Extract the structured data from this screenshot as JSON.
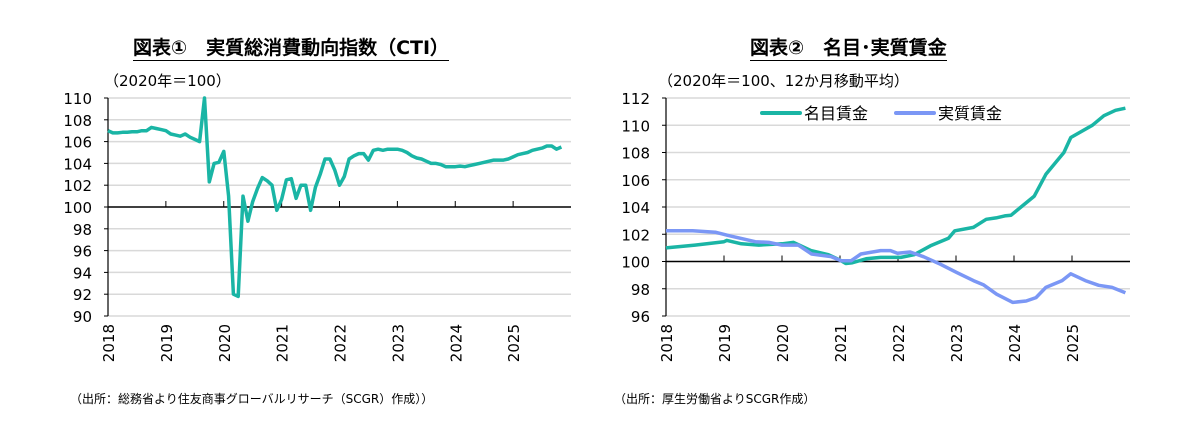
{
  "chart_data": [
    {
      "type": "line",
      "title": "図表①　実質総消費動向指数（CTI）",
      "subtitle": "（2020年＝100）",
      "note": "（出所：総務省より住友商事グローバルリサーチ（SCGR）作成））",
      "xlabel": "",
      "ylabel": "",
      "ylim": [
        90,
        110
      ],
      "yticks": [
        "90",
        "92",
        "94",
        "96",
        "98",
        "100",
        "102",
        "104",
        "106",
        "108",
        "110"
      ],
      "xlim": [
        2018,
        2026
      ],
      "xticks": [
        "2018",
        "2019",
        "2020",
        "2021",
        "2022",
        "2023",
        "2024",
        "2025"
      ],
      "grid": true,
      "series": [
        {
          "name": "実質総消費動向指数",
          "color": "#1ab5a5",
          "start": 2018,
          "freq": "monthly",
          "values": [
            107.0,
            106.8,
            106.8,
            106.85,
            106.85,
            106.9,
            106.9,
            107.0,
            107.0,
            107.3,
            107.2,
            107.1,
            107.0,
            106.7,
            106.6,
            106.5,
            106.7,
            106.4,
            106.2,
            106.0,
            110.0,
            102.3,
            104.0,
            104.1,
            105.1,
            101.0,
            92.0,
            91.8,
            101.0,
            98.7,
            100.5,
            101.7,
            102.7,
            102.4,
            102.0,
            99.7,
            100.7,
            102.5,
            102.6,
            100.8,
            102.0,
            102.0,
            99.7,
            101.8,
            103.0,
            104.4,
            104.4,
            103.4,
            102.0,
            102.8,
            104.4,
            104.7,
            104.9,
            104.9,
            104.3,
            105.2,
            105.3,
            105.2,
            105.3,
            105.3,
            105.3,
            105.2,
            105.0,
            104.7,
            104.5,
            104.4,
            104.2,
            104.0,
            104.0,
            103.9,
            103.7,
            103.7,
            103.7,
            103.75,
            103.7,
            103.8,
            103.9,
            104.0,
            104.1,
            104.2,
            104.3,
            104.3,
            104.3,
            104.4,
            104.6,
            104.8,
            104.9,
            105.0,
            105.2,
            105.3,
            105.4,
            105.6,
            105.6,
            105.3,
            105.5
          ]
        }
      ]
    },
    {
      "type": "line",
      "title": "図表②　名目･実質賃金",
      "subtitle": "（2020年＝100、12か月移動平均）",
      "note": "（出所：厚生労働省よりSCGR作成）",
      "xlabel": "",
      "ylabel": "",
      "ylim": [
        96,
        112
      ],
      "yticks": [
        "96",
        "98",
        "100",
        "102",
        "104",
        "106",
        "108",
        "110",
        "112"
      ],
      "xlim": [
        2018,
        2026
      ],
      "xticks": [
        "2018",
        "2019",
        "2020",
        "2021",
        "2022",
        "2023",
        "2024",
        "2025"
      ],
      "grid": true,
      "legend": "top-center",
      "series": [
        {
          "name": "名目賃金",
          "color": "#1ab5a5",
          "x": [
            2018.0,
            2018.5,
            2019.0,
            2019.05,
            2019.3,
            2019.6,
            2020.0,
            2020.2,
            2020.5,
            2020.8,
            2021.0,
            2021.1,
            2021.2,
            2021.45,
            2021.7,
            2022.05,
            2022.28,
            2022.56,
            2022.87,
            2022.98,
            2023.3,
            2023.52,
            2023.69,
            2023.84,
            2023.95,
            2024.15,
            2024.35,
            2024.55,
            2024.86,
            2024.98,
            2025.35,
            2025.55,
            2025.75,
            2025.92
          ],
          "values": [
            101.0,
            101.2,
            101.45,
            101.55,
            101.3,
            101.2,
            101.3,
            101.4,
            100.8,
            100.5,
            100.1,
            99.85,
            99.9,
            100.2,
            100.3,
            100.3,
            100.5,
            101.15,
            101.7,
            102.25,
            102.5,
            103.1,
            103.2,
            103.35,
            103.4,
            104.1,
            104.8,
            106.4,
            108.0,
            109.1,
            110.0,
            110.7,
            111.1,
            111.25
          ]
        },
        {
          "name": "実質賃金",
          "color": "#7b97f5",
          "x": [
            2018.0,
            2018.46,
            2018.85,
            2019.08,
            2019.54,
            2019.77,
            2020.0,
            2020.28,
            2020.51,
            2020.85,
            2021.02,
            2021.19,
            2021.36,
            2021.7,
            2021.87,
            2021.99,
            2022.21,
            2022.44,
            2022.73,
            2023.01,
            2023.3,
            2023.47,
            2023.7,
            2023.98,
            2024.21,
            2024.38,
            2024.55,
            2024.83,
            2024.98,
            2025.23,
            2025.46,
            2025.69,
            2025.92
          ],
          "values": [
            102.25,
            102.25,
            102.15,
            101.9,
            101.45,
            101.4,
            101.2,
            101.2,
            100.55,
            100.35,
            100.05,
            100.05,
            100.55,
            100.8,
            100.8,
            100.6,
            100.7,
            100.35,
            99.8,
            99.2,
            98.6,
            98.3,
            97.6,
            97.0,
            97.1,
            97.35,
            98.1,
            98.6,
            99.1,
            98.6,
            98.25,
            98.1,
            97.7
          ]
        }
      ]
    }
  ]
}
